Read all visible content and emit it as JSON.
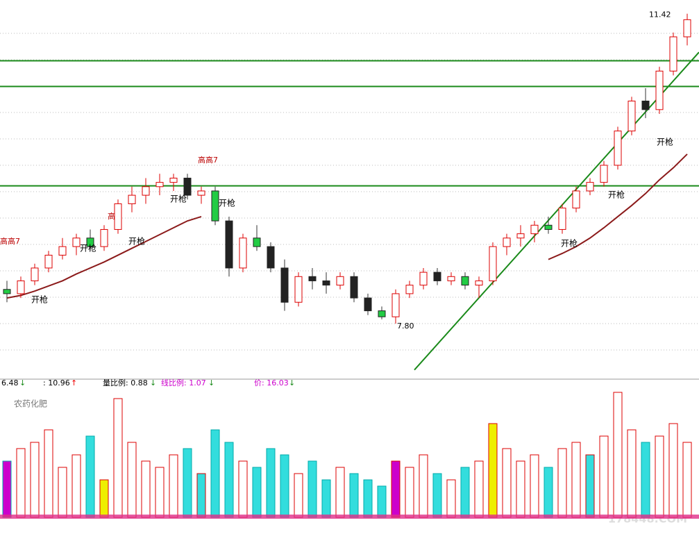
{
  "chart_data": {
    "type": "candlestick",
    "ylim": [
      7.16,
      11.58
    ],
    "ohlc": [
      [
        8.2,
        8.3,
        8.05,
        8.15
      ],
      [
        8.15,
        8.35,
        8.1,
        8.3
      ],
      [
        8.3,
        8.5,
        8.25,
        8.45
      ],
      [
        8.45,
        8.65,
        8.4,
        8.6
      ],
      [
        8.6,
        8.8,
        8.55,
        8.7
      ],
      [
        8.7,
        8.85,
        8.6,
        8.8
      ],
      [
        8.8,
        8.9,
        8.65,
        8.7
      ],
      [
        8.7,
        8.95,
        8.65,
        8.9
      ],
      [
        8.9,
        9.25,
        8.85,
        9.2
      ],
      [
        9.2,
        9.4,
        9.1,
        9.3
      ],
      [
        9.3,
        9.5,
        9.2,
        9.4
      ],
      [
        9.4,
        9.55,
        9.3,
        9.45
      ],
      [
        9.45,
        9.55,
        9.35,
        9.5
      ],
      [
        9.5,
        9.55,
        9.25,
        9.3
      ],
      [
        9.3,
        9.4,
        9.2,
        9.35
      ],
      [
        9.35,
        9.4,
        8.95,
        9.0
      ],
      [
        9.0,
        9.05,
        8.35,
        8.45
      ],
      [
        8.45,
        8.85,
        8.4,
        8.8
      ],
      [
        8.8,
        8.95,
        8.65,
        8.7
      ],
      [
        8.7,
        8.75,
        8.4,
        8.45
      ],
      [
        8.45,
        8.55,
        7.95,
        8.05
      ],
      [
        8.05,
        8.4,
        8.0,
        8.35
      ],
      [
        8.35,
        8.45,
        8.2,
        8.3
      ],
      [
        8.3,
        8.4,
        8.15,
        8.25
      ],
      [
        8.25,
        8.4,
        8.2,
        8.35
      ],
      [
        8.35,
        8.4,
        8.05,
        8.1
      ],
      [
        8.1,
        8.15,
        7.9,
        7.95
      ],
      [
        7.95,
        8.0,
        7.85,
        7.88
      ],
      [
        7.88,
        8.2,
        7.8,
        8.15
      ],
      [
        8.15,
        8.3,
        8.1,
        8.25
      ],
      [
        8.25,
        8.45,
        8.2,
        8.4
      ],
      [
        8.4,
        8.45,
        8.25,
        8.3
      ],
      [
        8.3,
        8.4,
        8.25,
        8.35
      ],
      [
        8.35,
        8.4,
        8.2,
        8.25
      ],
      [
        8.25,
        8.35,
        8.1,
        8.3
      ],
      [
        8.3,
        8.75,
        8.25,
        8.7
      ],
      [
        8.7,
        8.85,
        8.6,
        8.8
      ],
      [
        8.8,
        8.95,
        8.7,
        8.85
      ],
      [
        8.85,
        9.0,
        8.75,
        8.95
      ],
      [
        8.95,
        9.05,
        8.85,
        8.9
      ],
      [
        8.9,
        9.2,
        8.85,
        9.15
      ],
      [
        9.15,
        9.4,
        9.1,
        9.35
      ],
      [
        9.35,
        9.5,
        9.3,
        9.45
      ],
      [
        9.45,
        9.7,
        9.4,
        9.65
      ],
      [
        9.65,
        10.1,
        9.6,
        10.05
      ],
      [
        10.05,
        10.45,
        10.0,
        10.4
      ],
      [
        10.4,
        10.55,
        10.2,
        10.3
      ],
      [
        10.3,
        10.8,
        10.25,
        10.75
      ],
      [
        10.75,
        11.2,
        10.7,
        11.15
      ],
      [
        11.15,
        11.42,
        11.05,
        11.35
      ]
    ],
    "ma": {
      "color": "#8b1a1a",
      "values": [
        8.1,
        8.13,
        8.18,
        8.24,
        8.3,
        8.38,
        8.45,
        8.52,
        8.6,
        8.68,
        8.76,
        8.84,
        8.92,
        9.0,
        9.05,
        null,
        null,
        null,
        null,
        null,
        null,
        null,
        null,
        null,
        null,
        null,
        null,
        null,
        null,
        null,
        null,
        null,
        null,
        null,
        null,
        null,
        null,
        null,
        null,
        8.55,
        8.62,
        8.7,
        8.8,
        8.92,
        9.05,
        9.18,
        9.32,
        9.48,
        9.62,
        9.78
      ]
    },
    "levels": [
      10.87,
      10.57,
      9.41
    ],
    "level_color": "#1a8a1a",
    "trendline": {
      "x": [
        29.35,
        49.85
      ],
      "values": [
        7.26,
        10.97
      ]
    },
    "high_label": "11.42",
    "low_label": "7.80",
    "annotations": [
      "开枪",
      "开枪",
      "开枪",
      "开枪",
      "开枪",
      "开枪",
      "开枪",
      "开枪"
    ],
    "mark_labels": [
      "高高7",
      "高高7",
      "高"
    ],
    "volume": {
      "vlim": [
        0,
        100
      ],
      "values": [
        45,
        55,
        60,
        70,
        40,
        50,
        65,
        30,
        95,
        60,
        45,
        40,
        50,
        55,
        35,
        70,
        60,
        45,
        40,
        55,
        50,
        35,
        45,
        30,
        40,
        35,
        30,
        25,
        45,
        40,
        50,
        35,
        30,
        40,
        45,
        75,
        55,
        45,
        50,
        40,
        55,
        60,
        50,
        65,
        100,
        70,
        60,
        65,
        75,
        60
      ]
    },
    "header": [
      ": 10.96",
      "量比例: 0.88",
      "线比例: 1.07",
      "价: 16.03"
    ],
    "header_left": "6.48",
    "stock_name": "农药化肥",
    "watermark": "178448.COM"
  }
}
